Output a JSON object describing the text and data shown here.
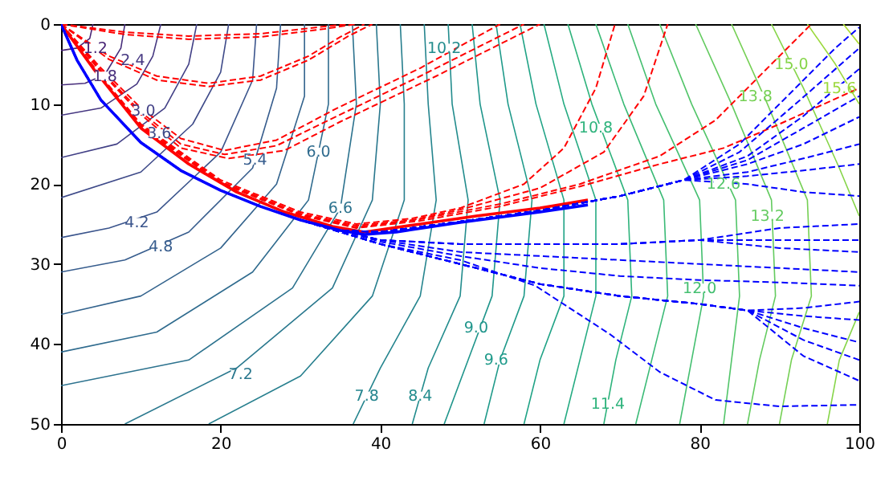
{
  "chart_data": {
    "type": "line",
    "xlim": [
      0,
      100
    ],
    "ylim": [
      50,
      0
    ],
    "xticks": [
      0,
      20,
      40,
      60,
      80,
      100
    ],
    "yticks": [
      0,
      10,
      20,
      30,
      40,
      50
    ],
    "grid": false,
    "annotations": [
      {
        "text": "1.2",
        "x": 4.3,
        "y": 3
      },
      {
        "text": "1.8",
        "x": 5.5,
        "y": 6.5
      },
      {
        "text": "2.4",
        "x": 9,
        "y": 4.5
      },
      {
        "text": "3.0",
        "x": 10.3,
        "y": 10.8
      },
      {
        "text": "3.6",
        "x": 12.3,
        "y": 13.7
      },
      {
        "text": "4.2",
        "x": 9.5,
        "y": 24.8
      },
      {
        "text": "4.8",
        "x": 12.5,
        "y": 27.8
      },
      {
        "text": "5.4",
        "x": 24.3,
        "y": 17
      },
      {
        "text": "6.0",
        "x": 32.25,
        "y": 16
      },
      {
        "text": "6.6",
        "x": 35,
        "y": 23
      },
      {
        "text": "7.2",
        "x": 22.5,
        "y": 43.8
      },
      {
        "text": "7.8",
        "x": 38.3,
        "y": 46.5
      },
      {
        "text": "8.4",
        "x": 45,
        "y": 46.5
      },
      {
        "text": "9.0",
        "x": 52,
        "y": 38
      },
      {
        "text": "9.6",
        "x": 54.5,
        "y": 42
      },
      {
        "text": "10.2",
        "x": 48,
        "y": 3
      },
      {
        "text": "10.8",
        "x": 67,
        "y": 13
      },
      {
        "text": "11.4",
        "x": 68.5,
        "y": 47.5
      },
      {
        "text": "12.0",
        "x": 80,
        "y": 33
      },
      {
        "text": "12.6",
        "x": 83,
        "y": 20
      },
      {
        "text": "13.2",
        "x": 88.5,
        "y": 24
      },
      {
        "text": "13.8",
        "x": 87,
        "y": 9
      },
      {
        "text": "15.0",
        "x": 91.5,
        "y": 5
      },
      {
        "text": "15.6",
        "x": 97.5,
        "y": 8
      }
    ],
    "series": [
      {
        "color": "#482475",
        "line_style": "solid",
        "x": [
          4,
          3.6,
          2,
          0
        ],
        "values": [
          0,
          1.8,
          3,
          3.3
        ]
      },
      {
        "color": "#472d7b",
        "line_style": "solid",
        "x": [
          8,
          7.5,
          5.5,
          3,
          0
        ],
        "values": [
          0,
          3,
          6.3,
          7.4,
          7.6
        ]
      },
      {
        "color": "#453781",
        "line_style": "solid",
        "x": [
          12.5,
          11.5,
          9.5,
          5,
          0
        ],
        "values": [
          0,
          4,
          7.5,
          10.5,
          11.4
        ]
      },
      {
        "color": "#424086",
        "line_style": "solid",
        "x": [
          17,
          16,
          13,
          7,
          0
        ],
        "values": [
          0,
          5,
          10.5,
          15,
          16.7
        ]
      },
      {
        "color": "#3e4a89",
        "line_style": "solid",
        "x": [
          21,
          20,
          16.5,
          10,
          0
        ],
        "values": [
          0,
          6,
          12.5,
          18.5,
          21.7
        ]
      },
      {
        "color": "#3a548c",
        "line_style": "solid",
        "x": [
          24.5,
          24,
          20,
          12,
          6,
          0
        ],
        "values": [
          0,
          7,
          16,
          23.5,
          25.5,
          26.7
        ]
      },
      {
        "color": "#365c8d",
        "line_style": "solid",
        "x": [
          27.5,
          27,
          24,
          16,
          8,
          0
        ],
        "values": [
          0,
          8,
          18,
          26,
          29.5,
          31
        ]
      },
      {
        "color": "#33638d",
        "line_style": "solid",
        "x": [
          30.5,
          30.5,
          27,
          20,
          10,
          0
        ],
        "values": [
          0,
          9,
          20,
          28,
          34,
          36.3
        ]
      },
      {
        "color": "#2f6b8e",
        "line_style": "solid",
        "x": [
          33.5,
          33.5,
          31,
          24,
          12,
          0
        ],
        "values": [
          0,
          10,
          22,
          31,
          38.5,
          41
        ]
      },
      {
        "color": "#2c728e",
        "line_style": "solid",
        "x": [
          36.5,
          37,
          35,
          29,
          16,
          0
        ],
        "values": [
          0,
          10,
          23,
          33,
          42,
          45.2
        ]
      },
      {
        "color": "#2a788e",
        "line_style": "solid",
        "x": [
          39.5,
          40,
          39,
          34,
          22,
          8
        ],
        "values": [
          0,
          10,
          22,
          33,
          43,
          50
        ]
      },
      {
        "color": "#277f8e",
        "line_style": "solid",
        "x": [
          42.5,
          43,
          43,
          39,
          30,
          18.5
        ],
        "values": [
          0,
          10,
          22,
          34,
          44,
          50
        ]
      },
      {
        "color": "#25858e",
        "line_style": "solid",
        "x": [
          45.5,
          46,
          47,
          45,
          40,
          36.6
        ],
        "values": [
          0,
          10,
          22,
          34,
          43,
          50
        ]
      },
      {
        "color": "#228c8d",
        "line_style": "solid",
        "x": [
          48.5,
          49,
          51,
          50,
          46,
          44
        ],
        "values": [
          0,
          10,
          22,
          34,
          43,
          50
        ]
      },
      {
        "color": "#1f958b",
        "line_style": "solid",
        "x": [
          51.5,
          52.5,
          55,
          54,
          51,
          48
        ],
        "values": [
          0,
          10,
          22,
          34,
          42,
          50
        ]
      },
      {
        "color": "#1f9a8a",
        "line_style": "solid",
        "x": [
          54.5,
          56,
          59,
          58,
          55,
          53
        ],
        "values": [
          0,
          10,
          22,
          34,
          42,
          50
        ]
      },
      {
        "color": "#20a386",
        "line_style": "solid",
        "x": [
          57.5,
          59.5,
          63,
          63,
          60,
          58
        ],
        "values": [
          0,
          10,
          22,
          34,
          42,
          50
        ]
      },
      {
        "color": "#25ab82",
        "line_style": "solid",
        "x": [
          60.5,
          63,
          67,
          67,
          65,
          63
        ],
        "values": [
          0,
          10,
          22,
          34,
          42,
          50
        ]
      },
      {
        "color": "#2eb37c",
        "line_style": "solid",
        "x": [
          63.5,
          66.5,
          71,
          71.5,
          69.5,
          68
        ],
        "values": [
          0,
          10,
          22,
          34,
          42,
          50
        ]
      },
      {
        "color": "#3aba76",
        "line_style": "solid",
        "x": [
          67,
          70.5,
          75.5,
          76,
          74,
          72
        ],
        "values": [
          0,
          10,
          22,
          34,
          42,
          50
        ]
      },
      {
        "color": "#44bf70",
        "line_style": "solid",
        "x": [
          71,
          74.5,
          80,
          80.5,
          79,
          77.5
        ],
        "values": [
          0,
          10,
          22,
          34,
          42,
          50
        ]
      },
      {
        "color": "#52c569",
        "line_style": "solid",
        "x": [
          75,
          79,
          84.5,
          85,
          84,
          83
        ],
        "values": [
          0,
          10,
          22,
          34,
          42,
          50
        ]
      },
      {
        "color": "#63cb5f",
        "line_style": "solid",
        "x": [
          79.5,
          84,
          89,
          89.5,
          87.5,
          86
        ],
        "values": [
          0,
          10,
          22,
          34,
          42,
          50
        ]
      },
      {
        "color": "#75d054",
        "line_style": "solid",
        "x": [
          84,
          88.5,
          93.5,
          94,
          91.5,
          90
        ],
        "values": [
          0,
          10,
          22,
          34,
          42,
          50
        ]
      },
      {
        "color": "#86d549",
        "line_style": "solid",
        "x": [
          89,
          93,
          97.5,
          100
        ],
        "values": [
          0,
          8,
          18,
          24
        ]
      },
      {
        "color": "#86d549",
        "line_style": "solid",
        "x": [
          100,
          97.5,
          96
        ],
        "values": [
          36,
          42,
          50
        ]
      },
      {
        "color": "#9bd93c",
        "line_style": "solid",
        "x": [
          93.5,
          97,
          100
        ],
        "values": [
          0,
          5,
          10
        ]
      },
      {
        "color": "#addc30",
        "line_style": "solid",
        "x": [
          98,
          100
        ],
        "values": [
          0,
          2.5
        ]
      },
      {
        "color": "#ff0000",
        "line_style": "dashed",
        "x": [
          0,
          8,
          16,
          25,
          33,
          36
        ],
        "values": [
          0,
          1,
          1.5,
          1.2,
          0.3,
          0
        ]
      },
      {
        "color": "#ff0000",
        "line_style": "dashed",
        "x": [
          0,
          8,
          16,
          25,
          33,
          37
        ],
        "values": [
          0,
          1.3,
          1.9,
          1.6,
          0.6,
          0
        ]
      },
      {
        "color": "#ff0000",
        "line_style": "dashed",
        "x": [
          0,
          6,
          12,
          18.5,
          25,
          31,
          35,
          38
        ],
        "values": [
          0,
          4,
          6.5,
          7.4,
          6.5,
          4,
          1.6,
          0
        ]
      },
      {
        "color": "#ff0000",
        "line_style": "dashed",
        "x": [
          0,
          6,
          12,
          18.5,
          25,
          31,
          36,
          39
        ],
        "values": [
          0,
          4.4,
          7,
          7.8,
          7,
          4.5,
          1.5,
          0
        ]
      },
      {
        "color": "#ff0000",
        "line_style": "dashed",
        "x": [
          0,
          5,
          10,
          15,
          20.5,
          27,
          34.6,
          45,
          55
        ],
        "values": [
          0,
          5.5,
          10.5,
          14.3,
          15.8,
          14.5,
          10.5,
          5.5,
          0
        ]
      },
      {
        "color": "#ff0000",
        "line_style": "dashed",
        "x": [
          0,
          5,
          10,
          15,
          20.5,
          27,
          34.6,
          45,
          58
        ],
        "values": [
          0,
          5.8,
          11,
          15,
          16.3,
          15.2,
          11.5,
          6.5,
          0
        ]
      },
      {
        "color": "#ff0000",
        "line_style": "dashed",
        "x": [
          0,
          5,
          10,
          15,
          21,
          28,
          35,
          47,
          60
        ],
        "values": [
          0,
          6,
          11.3,
          15.5,
          16.8,
          15.8,
          12.2,
          6.5,
          0
        ]
      },
      {
        "color": "#ff0000",
        "line_style": "dashed",
        "x": [
          0,
          5,
          10,
          20,
          30,
          37,
          44,
          50,
          58,
          63,
          67,
          69.4
        ],
        "values": [
          0,
          6.5,
          12.5,
          19.5,
          23.5,
          25,
          24.3,
          23,
          20,
          15.5,
          8,
          0
        ]
      },
      {
        "color": "#ff0000",
        "line_style": "dashed",
        "x": [
          0,
          5,
          10,
          20,
          30,
          37,
          44,
          50,
          60,
          68,
          73,
          76
        ],
        "values": [
          0,
          6.6,
          12.7,
          19.7,
          23.7,
          25.2,
          24.5,
          23.2,
          20.5,
          16,
          9,
          0
        ]
      },
      {
        "color": "#ff0000",
        "line_style": "dashed",
        "x": [
          0,
          5,
          10,
          20,
          30,
          37,
          45,
          55,
          65,
          75,
          82,
          88,
          94
        ],
        "values": [
          0,
          6.7,
          12.8,
          19.8,
          23.8,
          25.4,
          24.4,
          22.5,
          20,
          16.5,
          12,
          6,
          0
        ]
      },
      {
        "color": "#ff0000",
        "line_style": "dashed",
        "x": [
          0,
          5,
          10,
          20,
          30,
          37,
          45,
          55,
          65,
          75,
          83,
          90,
          100
        ],
        "values": [
          0,
          6.8,
          12.9,
          19.9,
          23.9,
          25.5,
          24.6,
          22.8,
          20.3,
          17.5,
          15.5,
          12.5,
          8
        ]
      },
      {
        "color": "#0000ff",
        "line_style": "dashed",
        "x": [
          0,
          2,
          5,
          10,
          15,
          20,
          25,
          30,
          35,
          40,
          50,
          60,
          70,
          78,
          85,
          92,
          97,
          100
        ],
        "values": [
          0,
          4.5,
          9.5,
          14.8,
          18.3,
          20.8,
          22.8,
          24.5,
          25.8,
          26,
          24.7,
          23.3,
          21.5,
          19.5,
          15,
          8,
          3,
          0.4
        ]
      },
      {
        "color": "#0000ff",
        "line_style": "dashed",
        "x": [
          0,
          2,
          5,
          10,
          15,
          20,
          25,
          30,
          35,
          40,
          50,
          60,
          70,
          78,
          85,
          92,
          100
        ],
        "values": [
          0,
          4.5,
          9.5,
          14.8,
          18.3,
          20.8,
          22.8,
          24.5,
          25.8,
          26,
          24.7,
          23.3,
          21.5,
          19.5,
          16,
          10,
          3
        ]
      },
      {
        "color": "#0000ff",
        "line_style": "dashed",
        "x": [
          0,
          2,
          5,
          10,
          15,
          20,
          25,
          30,
          35,
          40,
          50,
          60,
          70,
          78,
          86,
          93,
          100
        ],
        "values": [
          0,
          4.5,
          9.5,
          14.8,
          18.3,
          20.8,
          22.8,
          24.5,
          25.8,
          26,
          24.7,
          23.3,
          21.5,
          19.5,
          16.5,
          11.5,
          5.6
        ]
      },
      {
        "color": "#0000ff",
        "line_style": "dashed",
        "x": [
          0,
          2,
          5,
          10,
          15,
          20,
          25,
          30,
          35,
          40,
          50,
          60,
          70,
          78,
          86,
          93,
          100
        ],
        "values": [
          0,
          4.5,
          9.5,
          14.8,
          18.3,
          20.8,
          22.8,
          24.5,
          25.8,
          26,
          24.7,
          23.3,
          21.5,
          19.5,
          17,
          13,
          9
        ]
      },
      {
        "color": "#0000ff",
        "line_style": "dashed",
        "x": [
          0,
          2,
          5,
          10,
          15,
          20,
          25,
          30,
          35,
          40,
          50,
          60,
          70,
          78,
          86,
          93,
          100
        ],
        "values": [
          0,
          4.5,
          9.5,
          14.8,
          18.3,
          20.8,
          22.8,
          24.5,
          25.8,
          26,
          24.7,
          23.3,
          21.5,
          19.5,
          17.5,
          15,
          11.6
        ]
      },
      {
        "color": "#0000ff",
        "line_style": "dashed",
        "x": [
          0,
          2,
          5,
          10,
          15,
          20,
          25,
          30,
          35,
          40,
          50,
          60,
          70,
          78,
          86,
          93,
          100
        ],
        "values": [
          0,
          4.5,
          9.5,
          14.8,
          18.3,
          20.8,
          22.8,
          24.5,
          25.8,
          26,
          24.7,
          23.3,
          21.5,
          19.5,
          18.5,
          16.8,
          15
        ]
      },
      {
        "color": "#0000ff",
        "line_style": "dashed",
        "x": [
          0,
          2,
          5,
          10,
          15,
          20,
          25,
          30,
          35,
          40,
          50,
          60,
          70,
          78,
          86,
          93,
          100
        ],
        "values": [
          0,
          4.5,
          9.5,
          14.8,
          18.3,
          20.8,
          22.8,
          24.5,
          25.8,
          26,
          24.7,
          23.3,
          21.5,
          19.5,
          19,
          18.3,
          17.5
        ]
      },
      {
        "color": "#0000ff",
        "line_style": "dashed",
        "x": [
          0,
          2,
          5,
          10,
          15,
          20,
          25,
          30,
          35,
          40,
          50,
          60,
          70,
          78,
          86,
          93,
          100
        ],
        "values": [
          0,
          4.5,
          9.5,
          14.8,
          18.3,
          20.8,
          22.8,
          24.5,
          25.8,
          26,
          24.7,
          23.3,
          21.5,
          19.5,
          20,
          21,
          21.5
        ]
      },
      {
        "color": "#0000ff",
        "line_style": "dashed",
        "x": [
          0,
          2,
          5,
          10,
          15,
          20,
          25,
          30,
          35,
          40,
          50,
          60,
          70,
          80,
          90,
          100
        ],
        "values": [
          0,
          4.5,
          9.5,
          14.8,
          18.3,
          20.8,
          22.8,
          24.5,
          25.8,
          27,
          27.5,
          27.5,
          27.5,
          27,
          25.5,
          25
        ]
      },
      {
        "color": "#0000ff",
        "line_style": "dashed",
        "x": [
          0,
          2,
          5,
          10,
          15,
          20,
          25,
          30,
          35,
          40,
          50,
          60,
          70,
          80,
          90,
          100
        ],
        "values": [
          0,
          4.5,
          9.5,
          14.8,
          18.3,
          20.8,
          22.8,
          24.5,
          25.8,
          27,
          27.5,
          27.5,
          27.5,
          27,
          27,
          27
        ]
      },
      {
        "color": "#0000ff",
        "line_style": "dashed",
        "x": [
          0,
          2,
          5,
          10,
          15,
          20,
          25,
          30,
          35,
          40,
          50,
          60,
          70,
          80,
          90,
          100
        ],
        "values": [
          0,
          4.5,
          9.5,
          14.8,
          18.3,
          20.8,
          22.8,
          24.5,
          25.8,
          27,
          27.5,
          27.5,
          27.5,
          27,
          28,
          28.5
        ]
      },
      {
        "color": "#0000ff",
        "line_style": "dashed",
        "x": [
          0,
          2,
          5,
          10,
          15,
          20,
          25,
          30,
          35,
          40,
          50,
          60,
          70,
          80,
          90,
          100
        ],
        "values": [
          0,
          4.5,
          9.5,
          14.8,
          18.3,
          20.8,
          22.8,
          24.5,
          25.8,
          27,
          28.5,
          29,
          29.5,
          30,
          30.5,
          31
        ]
      },
      {
        "color": "#0000ff",
        "line_style": "dashed",
        "x": [
          0,
          2,
          5,
          10,
          15,
          20,
          25,
          30,
          35,
          40,
          50,
          60,
          70,
          80,
          90,
          100
        ],
        "values": [
          0,
          4.5,
          9.5,
          14.8,
          18.3,
          20.8,
          22.8,
          24.5,
          25.8,
          27.2,
          29,
          30.5,
          31.5,
          32,
          32.3,
          32.7
        ]
      },
      {
        "color": "#0000ff",
        "line_style": "dashed",
        "x": [
          0,
          2,
          5,
          10,
          15,
          20,
          25,
          30,
          35,
          40,
          50,
          60,
          70,
          80,
          86,
          93,
          100
        ],
        "values": [
          0,
          4.5,
          9.5,
          14.8,
          18.3,
          20.8,
          22.8,
          24.5,
          26,
          27.5,
          30,
          32.5,
          34,
          35,
          35.8,
          35.5,
          34.7
        ]
      },
      {
        "color": "#0000ff",
        "line_style": "dashed",
        "x": [
          0,
          2,
          5,
          10,
          15,
          20,
          25,
          30,
          35,
          40,
          50,
          60,
          70,
          80,
          86,
          93,
          100
        ],
        "values": [
          0,
          4.5,
          9.5,
          14.8,
          18.3,
          20.8,
          22.8,
          24.5,
          26,
          27.5,
          30,
          32.5,
          34,
          35,
          35.8,
          36.5,
          37
        ]
      },
      {
        "color": "#0000ff",
        "line_style": "dashed",
        "x": [
          0,
          2,
          5,
          10,
          15,
          20,
          25,
          30,
          35,
          40,
          50,
          60,
          70,
          80,
          86,
          93,
          100
        ],
        "values": [
          0,
          4.5,
          9.5,
          14.8,
          18.3,
          20.8,
          22.8,
          24.5,
          26,
          27.5,
          30,
          32.5,
          34,
          35,
          35.8,
          38,
          39.8
        ]
      },
      {
        "color": "#0000ff",
        "line_style": "dashed",
        "x": [
          0,
          2,
          5,
          10,
          15,
          20,
          25,
          30,
          35,
          40,
          50,
          60,
          70,
          80,
          86,
          93,
          100
        ],
        "values": [
          0,
          4.5,
          9.5,
          14.8,
          18.3,
          20.8,
          22.8,
          24.5,
          26,
          27.5,
          30,
          32.5,
          34,
          35,
          35.8,
          39.5,
          42
        ]
      },
      {
        "color": "#0000ff",
        "line_style": "dashed",
        "x": [
          0,
          2,
          5,
          10,
          15,
          20,
          25,
          30,
          35,
          40,
          50,
          60,
          70,
          80,
          86,
          93,
          100
        ],
        "values": [
          0,
          4.5,
          9.5,
          14.8,
          18.3,
          20.8,
          22.8,
          24.5,
          26,
          27.5,
          30,
          32.5,
          34,
          35,
          35.8,
          41.5,
          44.6
        ]
      },
      {
        "color": "#0000ff",
        "line_style": "dashed",
        "x": [
          0,
          2,
          5,
          10,
          15,
          20,
          25,
          30,
          35,
          40,
          50,
          59.4,
          68.8,
          75,
          82,
          90,
          100
        ],
        "values": [
          0,
          4.5,
          9.5,
          14.8,
          18.3,
          20.8,
          22.8,
          24.5,
          26,
          27.5,
          29.5,
          32.7,
          38.8,
          43.5,
          47,
          47.8,
          47.6
        ]
      },
      {
        "color": "#ff0000",
        "line_style": "solid",
        "x": [
          0,
          4,
          10,
          16,
          22,
          28,
          34,
          38,
          45,
          52,
          60,
          66
        ],
        "values": [
          0,
          5.5,
          13,
          17.5,
          21,
          23.5,
          25.3,
          26,
          25,
          24,
          23,
          22
        ]
      },
      {
        "color": "#0000ff",
        "line_style": "solid",
        "x": [
          0,
          2,
          5,
          10,
          15,
          20,
          25,
          30,
          35,
          38,
          42,
          50,
          60,
          66
        ],
        "values": [
          0,
          4.5,
          9.5,
          14.8,
          18.3,
          20.8,
          22.8,
          24.5,
          25.8,
          26.3,
          26,
          24.8,
          23.5,
          22.6
        ]
      }
    ]
  }
}
